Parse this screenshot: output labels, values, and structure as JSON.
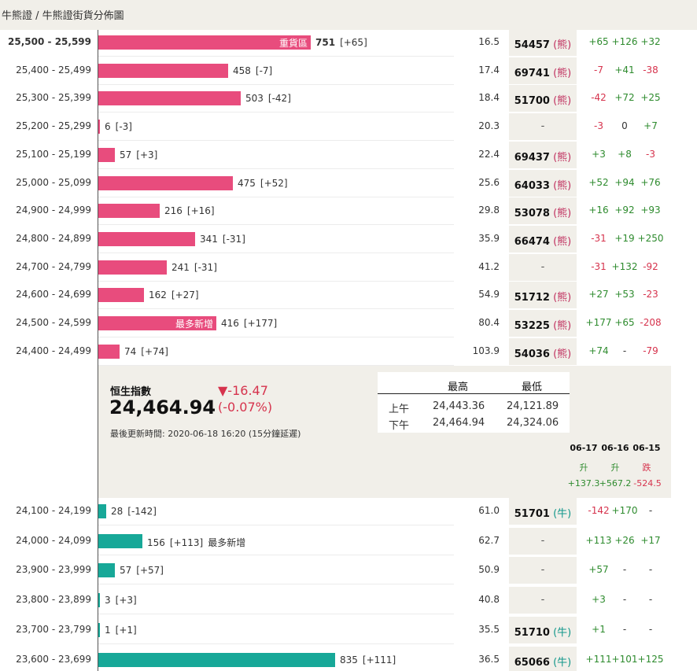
{
  "breadcrumb": "牛熊證 / 牛熊證街貨分佈圖",
  "bear_rows": [
    {
      "range": "25,500 - 25,599",
      "val": "751",
      "ext": "[+65]",
      "tag": "重貨區",
      "bold": true,
      "ratio": "16.5",
      "code": "54457",
      "type": "(熊)",
      "c1": "+65",
      "c2": "+126",
      "c3": "+32"
    },
    {
      "range": "25,400 - 25,499",
      "val": "458",
      "ext": "[-7]",
      "tag": "",
      "bold": false,
      "ratio": "17.4",
      "code": "69741",
      "type": "(熊)",
      "c1": "-7",
      "c2": "+41",
      "c3": "-38"
    },
    {
      "range": "25,300 - 25,399",
      "val": "503",
      "ext": "[-42]",
      "tag": "",
      "bold": false,
      "ratio": "18.4",
      "code": "51700",
      "type": "(熊)",
      "c1": "-42",
      "c2": "+72",
      "c3": "+25"
    },
    {
      "range": "25,200 - 25,299",
      "val": "6",
      "ext": "[-3]",
      "tag": "",
      "bold": false,
      "ratio": "20.3",
      "code": "-",
      "type": "",
      "c1": "-3",
      "c2": "0",
      "c3": "+7"
    },
    {
      "range": "25,100 - 25,199",
      "val": "57",
      "ext": "[+3]",
      "tag": "",
      "bold": false,
      "ratio": "22.4",
      "code": "69437",
      "type": "(熊)",
      "c1": "+3",
      "c2": "+8",
      "c3": "-3"
    },
    {
      "range": "25,000 - 25,099",
      "val": "475",
      "ext": "[+52]",
      "tag": "",
      "bold": false,
      "ratio": "25.6",
      "code": "64033",
      "type": "(熊)",
      "c1": "+52",
      "c2": "+94",
      "c3": "+76"
    },
    {
      "range": "24,900 - 24,999",
      "val": "216",
      "ext": "[+16]",
      "tag": "",
      "bold": false,
      "ratio": "29.8",
      "code": "53078",
      "type": "(熊)",
      "c1": "+16",
      "c2": "+92",
      "c3": "+93"
    },
    {
      "range": "24,800 - 24,899",
      "val": "341",
      "ext": "[-31]",
      "tag": "",
      "bold": false,
      "ratio": "35.9",
      "code": "66474",
      "type": "(熊)",
      "c1": "-31",
      "c2": "+19",
      "c3": "+250"
    },
    {
      "range": "24,700 - 24,799",
      "val": "241",
      "ext": "[-31]",
      "tag": "",
      "bold": false,
      "ratio": "41.2",
      "code": "-",
      "type": "",
      "c1": "-31",
      "c2": "+132",
      "c3": "-92"
    },
    {
      "range": "24,600 - 24,699",
      "val": "162",
      "ext": "[+27]",
      "tag": "",
      "bold": false,
      "ratio": "54.9",
      "code": "51712",
      "type": "(熊)",
      "c1": "+27",
      "c2": "+53",
      "c3": "-23"
    },
    {
      "range": "24,500 - 24,599",
      "val": "416",
      "ext": "[+177]",
      "tag": "最多新增",
      "bold": false,
      "ratio": "80.4",
      "code": "53225",
      "type": "(熊)",
      "c1": "+177",
      "c2": "+65",
      "c3": "-208"
    },
    {
      "range": "24,400 - 24,499",
      "val": "74",
      "ext": "[+74]",
      "tag": "",
      "bold": false,
      "ratio": "103.9",
      "code": "54036",
      "type": "(熊)",
      "c1": "+74",
      "c2": "-",
      "c3": "-79"
    }
  ],
  "index": {
    "label": "恒生指數",
    "value": "24,464.94",
    "change": "▼-16.47",
    "change_pct": "(-0.07%)",
    "updated": "最後更新時間: 2020-06-18 16:20 (15分鐘延遲)",
    "high_label": "最高",
    "low_label": "最低",
    "am_label": "上午",
    "pm_label": "下午",
    "am_high": "24,443.36",
    "am_low": "24,121.89",
    "pm_high": "24,464.94",
    "pm_low": "24,324.06"
  },
  "daily": [
    {
      "date": "06-17",
      "dir": "升",
      "val": "+137.3"
    },
    {
      "date": "06-16",
      "dir": "升",
      "val": "+567.2"
    },
    {
      "date": "06-15",
      "dir": "跌",
      "val": "-524.5"
    }
  ],
  "bull_rows": [
    {
      "range": "24,100 - 24,199",
      "val": "28",
      "ext": "[-142]",
      "tag": "",
      "ratio": "61.0",
      "code": "51701",
      "type": "(牛)",
      "c1": "-142",
      "c2": "+170",
      "c3": "-"
    },
    {
      "range": "24,000 - 24,099",
      "val": "156",
      "ext": "[+113]",
      "tag": "最多新增",
      "ratio": "62.7",
      "code": "-",
      "type": "",
      "c1": "+113",
      "c2": "+26",
      "c3": "+17"
    },
    {
      "range": "23,900 - 23,999",
      "val": "57",
      "ext": "[+57]",
      "tag": "",
      "ratio": "50.9",
      "code": "-",
      "type": "",
      "c1": "+57",
      "c2": "-",
      "c3": "-"
    },
    {
      "range": "23,800 - 23,899",
      "val": "3",
      "ext": "[+3]",
      "tag": "",
      "ratio": "40.8",
      "code": "-",
      "type": "",
      "c1": "+3",
      "c2": "-",
      "c3": "-"
    },
    {
      "range": "23,700 - 23,799",
      "val": "1",
      "ext": "[+1]",
      "tag": "",
      "ratio": "35.5",
      "code": "51710",
      "type": "(牛)",
      "c1": "+1",
      "c2": "-",
      "c3": "-"
    },
    {
      "range": "23,600 - 23,699",
      "val": "835",
      "ext": "[+111]",
      "tag": "",
      "ratio": "36.5",
      "code": "65066",
      "type": "(牛)",
      "c1": "+111",
      "c2": "+101",
      "c3": "+125"
    }
  ],
  "colors": {
    "bear": "#e84c7d",
    "bull": "#17a898",
    "up": "#2e8b2e",
    "down": "#d6334d"
  }
}
